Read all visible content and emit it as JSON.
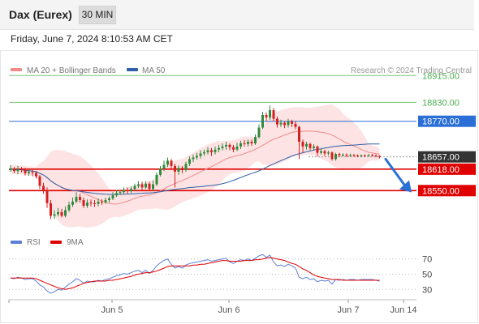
{
  "header": {
    "title": "Dax (Eurex)",
    "timeframe": "30 MIN",
    "timestamp": "Friday, June 7, 2024 8:10:53 AM CET"
  },
  "legend": {
    "ma20_bb": "MA 20 + Bollinger Bands",
    "ma50": "MA 50",
    "source": "Research © 2024 Trading Central"
  },
  "rsi_legend": {
    "rsi": "RSI",
    "ma": "9MA"
  },
  "colors": {
    "ma20": "#f08a8a",
    "bollinger": "#fde3e3",
    "ma50": "#2f5fa8",
    "up": "#2e8b3e",
    "down": "#d62020",
    "resistance": "#7cc47c",
    "pivot": "#2a6fd6",
    "support": "#e00000",
    "current": "#333333",
    "arrow": "#2a6fd6",
    "rsi": "#5b7fd6",
    "rsi_ma": "#e00000"
  },
  "chart_data": {
    "type": "candlestick",
    "title": "Dax (Eurex)",
    "timeframe": "30 MIN",
    "x_ticks": [
      "Jun 5",
      "Jun 6",
      "Jun 7",
      "Jun 14"
    ],
    "y_range": [
      18430,
      18980
    ],
    "levels": [
      {
        "label": "18915.00",
        "value": 18915,
        "role": "resistance"
      },
      {
        "label": "18830.00",
        "value": 18830,
        "role": "resistance"
      },
      {
        "label": "18770.00",
        "value": 18770,
        "role": "pivot"
      },
      {
        "label": "18657.00",
        "value": 18657,
        "role": "current"
      },
      {
        "label": "18618.00",
        "value": 18618,
        "role": "support"
      },
      {
        "label": "18550.00",
        "value": 18550,
        "role": "support"
      }
    ],
    "forecast_arrow": {
      "from": 18650,
      "to": 18552
    },
    "candles": [
      [
        18615,
        18620,
        18630,
        18610
      ],
      [
        18620,
        18612,
        18625,
        18605
      ],
      [
        18612,
        18618,
        18628,
        18602
      ],
      [
        18618,
        18615,
        18625,
        18608
      ],
      [
        18615,
        18605,
        18622,
        18598
      ],
      [
        18605,
        18609,
        18618,
        18597
      ],
      [
        18609,
        18606,
        18615,
        18595
      ],
      [
        18606,
        18595,
        18612,
        18588
      ],
      [
        18595,
        18565,
        18600,
        18555
      ],
      [
        18565,
        18550,
        18575,
        18540
      ],
      [
        18550,
        18510,
        18560,
        18495
      ],
      [
        18510,
        18470,
        18520,
        18460
      ],
      [
        18470,
        18475,
        18488,
        18460
      ],
      [
        18475,
        18482,
        18495,
        18468
      ],
      [
        18482,
        18470,
        18492,
        18465
      ],
      [
        18470,
        18488,
        18500,
        18465
      ],
      [
        18488,
        18505,
        18515,
        18482
      ],
      [
        18505,
        18515,
        18528,
        18498
      ],
      [
        18515,
        18530,
        18545,
        18510
      ],
      [
        18530,
        18520,
        18540,
        18512
      ],
      [
        18520,
        18502,
        18528,
        18495
      ],
      [
        18502,
        18512,
        18522,
        18495
      ],
      [
        18512,
        18510,
        18522,
        18500
      ],
      [
        18510,
        18508,
        18520,
        18498
      ],
      [
        18508,
        18515,
        18525,
        18500
      ],
      [
        18515,
        18513,
        18523,
        18505
      ],
      [
        18513,
        18520,
        18528,
        18508
      ],
      [
        18520,
        18525,
        18532,
        18512
      ],
      [
        18525,
        18535,
        18545,
        18520
      ],
      [
        18535,
        18542,
        18552,
        18530
      ],
      [
        18542,
        18545,
        18550,
        18536
      ],
      [
        18545,
        18552,
        18560,
        18540
      ],
      [
        18552,
        18548,
        18560,
        18540
      ],
      [
        18548,
        18555,
        18563,
        18542
      ],
      [
        18555,
        18565,
        18572,
        18550
      ],
      [
        18565,
        18570,
        18580,
        18558
      ],
      [
        18570,
        18560,
        18578,
        18552
      ],
      [
        18560,
        18572,
        18580,
        18555
      ],
      [
        18572,
        18555,
        18578,
        18548
      ],
      [
        18555,
        18570,
        18582,
        18548
      ],
      [
        18570,
        18600,
        18608,
        18565
      ],
      [
        18600,
        18620,
        18628,
        18595
      ],
      [
        18620,
        18632,
        18645,
        18612
      ],
      [
        18632,
        18645,
        18655,
        18625
      ],
      [
        18645,
        18628,
        18650,
        18620
      ],
      [
        18628,
        18610,
        18635,
        18560
      ],
      [
        18610,
        18622,
        18630,
        18600
      ],
      [
        18622,
        18615,
        18628,
        18605
      ],
      [
        18615,
        18635,
        18642,
        18610
      ],
      [
        18635,
        18650,
        18658,
        18628
      ],
      [
        18650,
        18655,
        18665,
        18640
      ],
      [
        18655,
        18660,
        18670,
        18648
      ],
      [
        18660,
        18668,
        18678,
        18652
      ],
      [
        18668,
        18672,
        18680,
        18660
      ],
      [
        18672,
        18678,
        18688,
        18665
      ],
      [
        18678,
        18672,
        18685,
        18660
      ],
      [
        18672,
        18680,
        18690,
        18665
      ],
      [
        18680,
        18685,
        18695,
        18672
      ],
      [
        18685,
        18690,
        18700,
        18678
      ],
      [
        18690,
        18695,
        18705,
        18680
      ],
      [
        18695,
        18688,
        18700,
        18678
      ],
      [
        18688,
        18680,
        18695,
        18672
      ],
      [
        18680,
        18690,
        18702,
        18675
      ],
      [
        18690,
        18700,
        18708,
        18682
      ],
      [
        18700,
        18698,
        18710,
        18690
      ],
      [
        18698,
        18705,
        18712,
        18690
      ],
      [
        18705,
        18700,
        18712,
        18692
      ],
      [
        18700,
        18720,
        18728,
        18695
      ],
      [
        18720,
        18750,
        18760,
        18715
      ],
      [
        18750,
        18790,
        18800,
        18745
      ],
      [
        18790,
        18782,
        18798,
        18770
      ],
      [
        18782,
        18805,
        18820,
        18775
      ],
      [
        18805,
        18778,
        18812,
        18770
      ],
      [
        18778,
        18760,
        18785,
        18750
      ],
      [
        18760,
        18765,
        18775,
        18752
      ],
      [
        18765,
        18758,
        18770,
        18748
      ],
      [
        18758,
        18770,
        18778,
        18750
      ],
      [
        18770,
        18762,
        18775,
        18752
      ],
      [
        18762,
        18752,
        18770,
        18745
      ],
      [
        18752,
        18705,
        18756,
        18650
      ],
      [
        18705,
        18690,
        18712,
        18670
      ],
      [
        18690,
        18698,
        18705,
        18680
      ],
      [
        18698,
        18685,
        18702,
        18678
      ],
      [
        18685,
        18690,
        18697,
        18678
      ],
      [
        18690,
        18670,
        18693,
        18660
      ],
      [
        18670,
        18675,
        18682,
        18665
      ],
      [
        18675,
        18668,
        18680,
        18660
      ],
      [
        18668,
        18671,
        18676,
        18662
      ],
      [
        18671,
        18650,
        18674,
        18645
      ],
      [
        18650,
        18666,
        18670,
        18645
      ],
      [
        18666,
        18662,
        18670,
        18656
      ],
      [
        18662,
        18664,
        18668,
        18658
      ],
      [
        18664,
        18661,
        18668,
        18656
      ],
      [
        18661,
        18663,
        18667,
        18657
      ],
      [
        18663,
        18662,
        18666,
        18657
      ],
      [
        18662,
        18660,
        18665,
        18656
      ],
      [
        18660,
        18662,
        18665,
        18656
      ],
      [
        18662,
        18661,
        18665,
        18657
      ],
      [
        18661,
        18663,
        18666,
        18657
      ],
      [
        18663,
        18662,
        18666,
        18658
      ],
      [
        18662,
        18660,
        18665,
        18656
      ],
      [
        18660,
        18657,
        18662,
        18652
      ]
    ],
    "rsi": {
      "levels": [
        70,
        50,
        30
      ],
      "level_labels": [
        "70",
        "50",
        "30"
      ],
      "rsi_values": [
        45,
        44,
        46,
        45,
        43,
        44,
        44,
        41,
        36,
        33,
        28,
        25,
        27,
        30,
        29,
        33,
        37,
        40,
        44,
        42,
        38,
        41,
        40,
        40,
        42,
        41,
        43,
        44,
        46,
        48,
        49,
        51,
        50,
        52,
        54,
        55,
        52,
        55,
        51,
        55,
        61,
        65,
        68,
        70,
        63,
        58,
        60,
        58,
        62,
        64,
        65,
        66,
        67,
        68,
        69,
        67,
        68,
        69,
        70,
        71,
        66,
        64,
        67,
        69,
        68,
        70,
        68,
        71,
        74,
        76,
        72,
        75,
        66,
        61,
        62,
        60,
        63,
        61,
        58,
        46,
        44,
        46,
        43,
        44,
        40,
        42,
        41,
        42,
        37,
        43,
        42,
        43,
        42,
        43,
        43,
        42,
        43,
        43,
        43,
        43,
        42,
        41
      ],
      "ma_values": [
        45,
        45,
        45,
        45,
        45,
        45,
        45,
        44,
        42,
        40,
        38,
        36,
        34,
        32,
        31,
        30,
        31,
        32,
        34,
        36,
        38,
        39,
        40,
        41,
        41,
        41,
        41,
        42,
        42,
        43,
        44,
        45,
        46,
        47,
        49,
        50,
        51,
        52,
        52,
        53,
        54,
        56,
        58,
        60,
        61,
        61,
        61,
        61,
        61,
        61,
        62,
        62,
        63,
        63,
        64,
        65,
        66,
        67,
        68,
        68,
        67,
        67,
        67,
        67,
        68,
        68,
        68,
        69,
        69,
        70,
        71,
        72,
        71,
        70,
        69,
        68,
        66,
        64,
        63,
        60,
        57,
        55,
        52,
        49,
        47,
        46,
        45,
        44,
        43,
        43,
        43,
        42,
        42,
        42,
        42,
        42,
        42,
        42,
        42,
        42,
        42,
        42
      ]
    }
  }
}
